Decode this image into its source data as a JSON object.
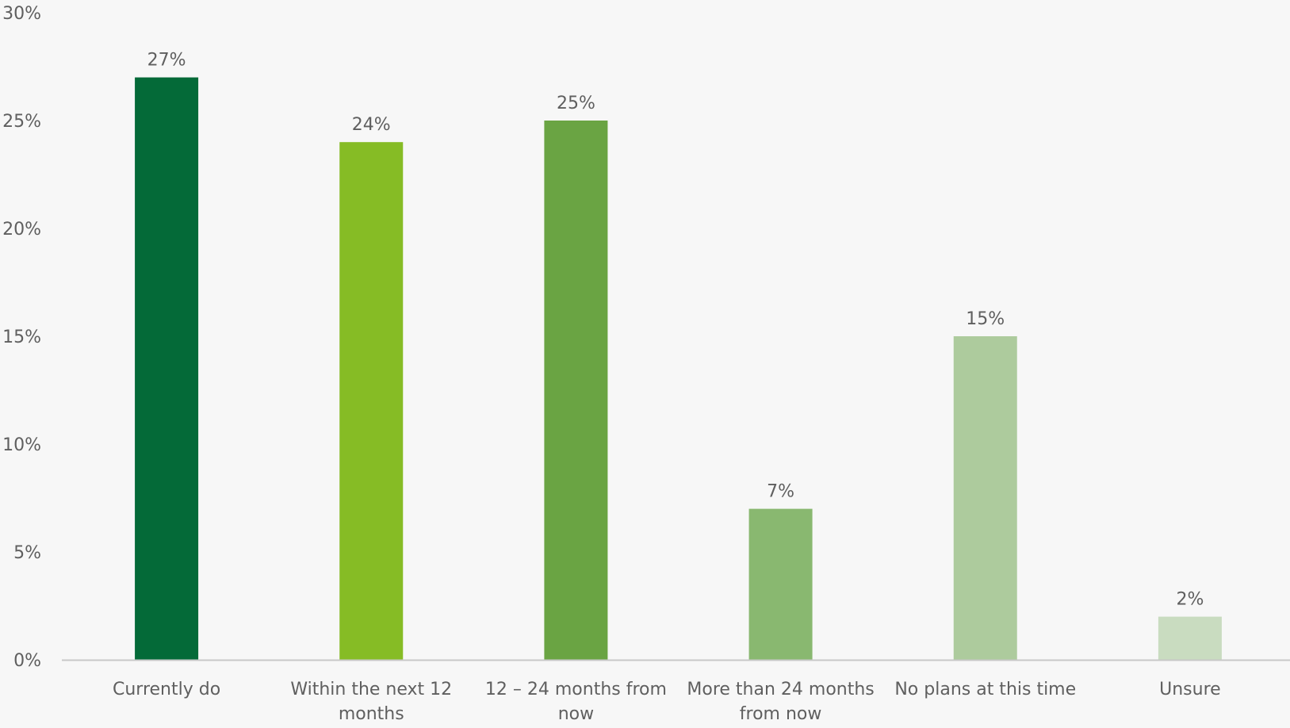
{
  "chart_data": {
    "type": "bar",
    "title": "",
    "xlabel": "",
    "ylabel": "",
    "categories": [
      [
        "Currently do"
      ],
      [
        "Within the next 12",
        "months"
      ],
      [
        "12 – 24 months from",
        "now"
      ],
      [
        "More than 24 months",
        "from now"
      ],
      [
        "No plans at this time"
      ],
      [
        "Unsure"
      ]
    ],
    "values": [
      27,
      24,
      25,
      7,
      15,
      2
    ],
    "value_labels": [
      "27%",
      "24%",
      "25%",
      "7%",
      "15%",
      "2%"
    ],
    "bar_colors": [
      "#046a38",
      "#86bc25",
      "#6aa443",
      "#89b870",
      "#adcb9d",
      "#c9dcc0"
    ],
    "ylim": [
      0,
      30
    ],
    "yticks": [
      0,
      5,
      10,
      15,
      20,
      25,
      30
    ],
    "ytick_labels": [
      "0%",
      "5%",
      "10%",
      "15%",
      "20%",
      "25%",
      "30%"
    ],
    "grid": false,
    "legend": "none"
  },
  "colors": {
    "background": "#f7f7f7",
    "axis_line": "#c8c8c8",
    "text": "#5f5f5f"
  }
}
